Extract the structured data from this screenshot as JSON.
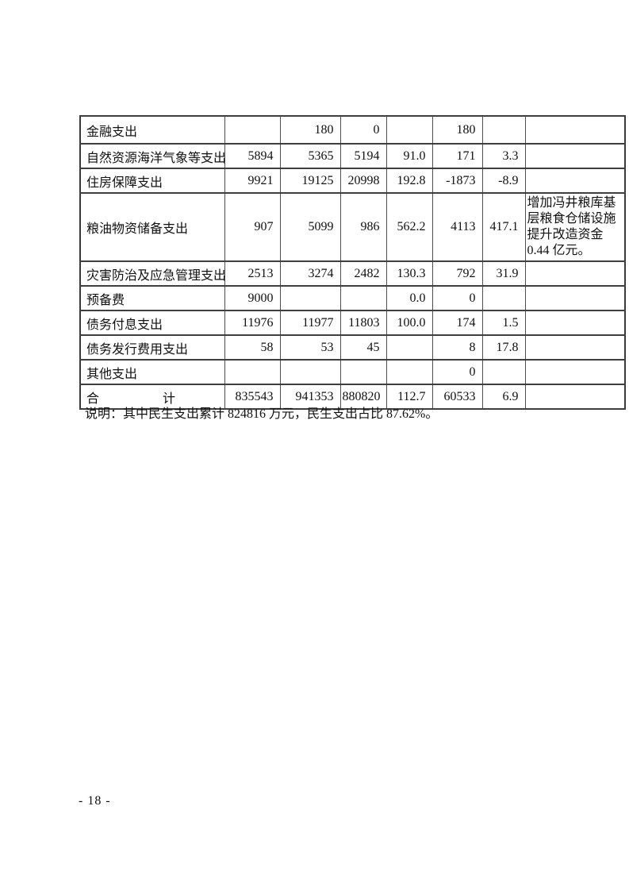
{
  "page_number": "- 18 -",
  "footnote": "说明：其中民生支出累计 824816 万元，民生支出占比 87.62%。",
  "table": {
    "rows": [
      {
        "cells": [
          "金融支出",
          "",
          "180",
          "0",
          "",
          "180",
          "",
          ""
        ]
      },
      {
        "cells": [
          "自然资源海洋气象等支出",
          "5894",
          "5365",
          "5194",
          "91.0",
          "171",
          "3.3",
          ""
        ]
      },
      {
        "cells": [
          "住房保障支出",
          "9921",
          "19125",
          "20998",
          "192.8",
          "-1873",
          "-8.9",
          ""
        ]
      },
      {
        "cells": [
          "粮油物资储备支出",
          "907",
          "5099",
          "986",
          "562.2",
          "4113",
          "417.1",
          "增加冯井粮库基层粮食仓储设施提升改造资金 0.44 亿元。"
        ]
      },
      {
        "cells": [
          "灾害防治及应急管理支出",
          "2513",
          "3274",
          "2482",
          "130.3",
          "792",
          "31.9",
          ""
        ]
      },
      {
        "cells": [
          "预备费",
          "9000",
          "",
          "",
          "0.0",
          "0",
          "",
          ""
        ]
      },
      {
        "cells": [
          "债务付息支出",
          "11976",
          "11977",
          "11803",
          "100.0",
          "174",
          "1.5",
          ""
        ]
      },
      {
        "cells": [
          "债务发行费用支出",
          "58",
          "53",
          "45",
          "",
          "8",
          "17.8",
          ""
        ]
      },
      {
        "cells": [
          "其他支出",
          "",
          "",
          "",
          "",
          "0",
          "",
          ""
        ]
      },
      {
        "cells": [
          "合　　　　　计",
          "835543",
          "941353",
          "880820",
          "112.7",
          "60533",
          "6.9",
          ""
        ]
      }
    ]
  }
}
